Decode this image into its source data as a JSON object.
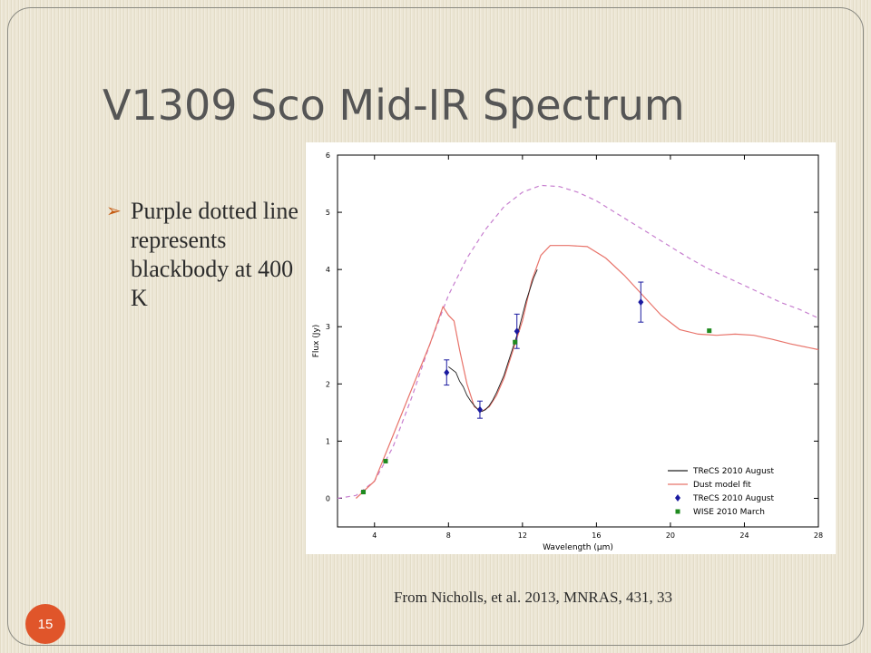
{
  "slide": {
    "title": "V1309 Sco Mid-IR Spectrum",
    "bullet": "Purple dotted line represents blackbody at 400 K",
    "bullet_marker": "➢",
    "citation": "From Nicholls, et al. 2013, MNRAS, 431, 33",
    "slide_number": "15"
  },
  "colors": {
    "bullet_marker": "#c55a11",
    "slide_number_bg": "#e0552a",
    "blackbody": "#c77fcf",
    "dust_model": "#e8736a",
    "trecs_spectrum": "#222222",
    "trecs_points": "#1a1aa0",
    "wise_points": "#1f8a1f"
  },
  "chart_data": {
    "type": "line",
    "xlabel": "Wavelength (μm)",
    "ylabel": "Flux (Jy)",
    "xlim": [
      2,
      28
    ],
    "ylim": [
      -0.5,
      6
    ],
    "x_ticks": [
      "4",
      "8",
      "12",
      "16",
      "20",
      "24",
      "28"
    ],
    "y_ticks": [
      "0",
      "1",
      "2",
      "3",
      "4",
      "5",
      "6"
    ],
    "legend_position": "bottom-right",
    "series": [
      {
        "name": "TReCS 2010 August",
        "kind": "line",
        "points": [
          [
            8.0,
            2.3
          ],
          [
            8.2,
            2.25
          ],
          [
            8.4,
            2.2
          ],
          [
            8.6,
            2.05
          ],
          [
            8.8,
            1.95
          ],
          [
            9.0,
            1.8
          ],
          [
            9.2,
            1.7
          ],
          [
            9.4,
            1.62
          ],
          [
            9.6,
            1.55
          ],
          [
            9.8,
            1.52
          ],
          [
            10.0,
            1.55
          ],
          [
            10.2,
            1.62
          ],
          [
            10.4,
            1.72
          ],
          [
            10.6,
            1.85
          ],
          [
            10.8,
            2.0
          ],
          [
            11.0,
            2.15
          ],
          [
            11.2,
            2.35
          ],
          [
            11.4,
            2.55
          ],
          [
            11.6,
            2.75
          ],
          [
            11.8,
            2.95
          ],
          [
            12.0,
            3.2
          ],
          [
            12.2,
            3.45
          ],
          [
            12.4,
            3.65
          ],
          [
            12.6,
            3.85
          ],
          [
            12.8,
            4.0
          ]
        ]
      },
      {
        "name": "Dust model fit",
        "kind": "line",
        "points": [
          [
            3.0,
            0.0
          ],
          [
            4.0,
            0.3
          ],
          [
            5.0,
            1.1
          ],
          [
            6.0,
            1.9
          ],
          [
            7.0,
            2.7
          ],
          [
            7.7,
            3.35
          ],
          [
            8.0,
            3.2
          ],
          [
            8.3,
            3.1
          ],
          [
            8.6,
            2.6
          ],
          [
            9.0,
            2.0
          ],
          [
            9.4,
            1.6
          ],
          [
            9.8,
            1.52
          ],
          [
            10.2,
            1.6
          ],
          [
            10.6,
            1.8
          ],
          [
            11.0,
            2.1
          ],
          [
            11.5,
            2.6
          ],
          [
            12.0,
            3.1
          ],
          [
            12.5,
            3.8
          ],
          [
            13.0,
            4.25
          ],
          [
            13.5,
            4.42
          ],
          [
            14.5,
            4.42
          ],
          [
            15.5,
            4.4
          ],
          [
            16.5,
            4.2
          ],
          [
            17.5,
            3.9
          ],
          [
            18.5,
            3.55
          ],
          [
            19.5,
            3.2
          ],
          [
            20.5,
            2.95
          ],
          [
            21.5,
            2.87
          ],
          [
            22.5,
            2.85
          ],
          [
            23.5,
            2.87
          ],
          [
            24.5,
            2.85
          ],
          [
            25.5,
            2.78
          ],
          [
            26.5,
            2.7
          ],
          [
            28.0,
            2.6
          ]
        ]
      },
      {
        "name": "Blackbody 400 K",
        "kind": "dashed",
        "points": [
          [
            2.0,
            0.0
          ],
          [
            3.0,
            0.05
          ],
          [
            4.0,
            0.3
          ],
          [
            5.0,
            0.9
          ],
          [
            6.0,
            1.75
          ],
          [
            7.0,
            2.7
          ],
          [
            8.0,
            3.55
          ],
          [
            9.0,
            4.2
          ],
          [
            10.0,
            4.7
          ],
          [
            11.0,
            5.1
          ],
          [
            12.0,
            5.35
          ],
          [
            13.0,
            5.47
          ],
          [
            14.0,
            5.45
          ],
          [
            15.0,
            5.35
          ],
          [
            16.0,
            5.2
          ],
          [
            17.0,
            5.0
          ],
          [
            18.0,
            4.8
          ],
          [
            19.0,
            4.6
          ],
          [
            20.0,
            4.4
          ],
          [
            21.0,
            4.2
          ],
          [
            22.0,
            4.02
          ],
          [
            23.0,
            3.87
          ],
          [
            24.0,
            3.72
          ],
          [
            25.0,
            3.57
          ],
          [
            26.0,
            3.42
          ],
          [
            27.0,
            3.3
          ],
          [
            28.0,
            3.15
          ]
        ]
      },
      {
        "name": "TReCS 2010 August",
        "kind": "points-errorbars",
        "marker": "diamond",
        "points": [
          [
            7.9,
            2.2,
            0.22
          ],
          [
            9.7,
            1.55,
            0.15
          ],
          [
            11.7,
            2.92,
            0.3
          ],
          [
            18.4,
            3.43,
            0.35
          ]
        ]
      },
      {
        "name": "WISE 2010 March",
        "kind": "points",
        "marker": "square",
        "points": [
          [
            3.4,
            0.11
          ],
          [
            4.6,
            0.65
          ],
          [
            11.6,
            2.73
          ],
          [
            22.1,
            2.93
          ]
        ]
      }
    ]
  }
}
